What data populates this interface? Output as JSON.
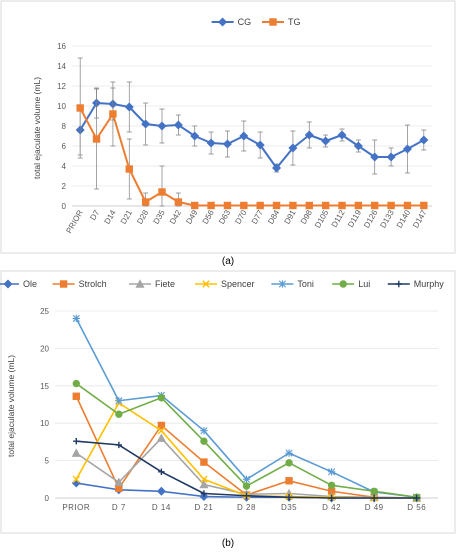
{
  "chart_data": [
    {
      "id": "a",
      "type": "line",
      "caption": "(a)",
      "ylabel": "total ejaculate volume (mL)",
      "xlabel": "",
      "categories": [
        "PRIOR",
        "D7",
        "D14",
        "D21",
        "D28",
        "D35",
        "D42",
        "D49",
        "D56",
        "D63",
        "D70",
        "D77",
        "D84",
        "D91",
        "D98",
        "D105",
        "D112",
        "D119",
        "D126",
        "D133",
        "D140",
        "D147"
      ],
      "ylim": [
        0,
        16
      ],
      "yticks": [
        0,
        2,
        4,
        6,
        8,
        10,
        12,
        14,
        16
      ],
      "grid": true,
      "legend_position": "top-center",
      "series": [
        {
          "name": "CG",
          "color": "#4472C4",
          "marker": "diamond",
          "values": [
            7.6,
            10.3,
            10.2,
            9.9,
            8.2,
            8.0,
            8.1,
            7.0,
            6.3,
            6.2,
            7.0,
            6.1,
            3.8,
            5.8,
            7.1,
            6.5,
            7.1,
            6.0,
            4.9,
            4.9,
            5.7,
            6.6
          ],
          "error": [
            2.5,
            1.5,
            1.6,
            2.5,
            2.1,
            1.7,
            1.0,
            1.0,
            1.1,
            1.3,
            1.5,
            1.3,
            0.4,
            1.7,
            1.3,
            0.6,
            0.6,
            0.6,
            1.7,
            0.9,
            2.4,
            1.0
          ]
        },
        {
          "name": "TG",
          "color": "#ED7D31",
          "marker": "square",
          "values": [
            9.8,
            6.7,
            9.2,
            3.7,
            0.4,
            1.4,
            0.4,
            0.05,
            0.05,
            0.05,
            0.05,
            0.05,
            0.05,
            0.05,
            0.05,
            0.05,
            0.05,
            0.05,
            0.05,
            0.05,
            0.05,
            0.05
          ],
          "error": [
            5.0,
            5.0,
            3.2,
            3.0,
            0.9,
            2.6,
            0.9,
            0.3,
            0.1,
            0.1,
            0.1,
            0.1,
            0.1,
            0.1,
            0.1,
            0.1,
            0.1,
            0.1,
            0.1,
            0.1,
            0.1,
            0.1
          ]
        }
      ]
    },
    {
      "id": "b",
      "type": "line",
      "caption": "(b)",
      "ylabel": "total ejaculate volume (mL)",
      "xlabel": "",
      "categories": [
        "PRIOR",
        "D 7",
        "D 14",
        "D 21",
        "D 28",
        "D35",
        "D 42",
        "D 49",
        "D 56"
      ],
      "ylim": [
        0,
        25
      ],
      "yticks": [
        0,
        5,
        10,
        15,
        20,
        25
      ],
      "grid": true,
      "legend_position": "top",
      "series": [
        {
          "name": "Ole",
          "color": "#4472C4",
          "marker": "diamond",
          "values": [
            2.0,
            1.1,
            0.9,
            0.2,
            0.1,
            0.1,
            0.0,
            0.0,
            0.0
          ]
        },
        {
          "name": "Strolch",
          "color": "#ED7D31",
          "marker": "square",
          "values": [
            13.6,
            1.3,
            9.7,
            4.8,
            0.4,
            2.3,
            0.9,
            0.1,
            0.0
          ]
        },
        {
          "name": "Fiete",
          "color": "#A5A5A5",
          "marker": "triangle",
          "values": [
            6.0,
            2.1,
            8.0,
            1.8,
            0.5,
            0.6,
            0.2,
            0.1,
            0.0
          ]
        },
        {
          "name": "Spencer",
          "color": "#FFC000",
          "marker": "x",
          "values": [
            2.5,
            12.7,
            9.0,
            2.5,
            0.3,
            0.2,
            0.1,
            0.0,
            0.0
          ]
        },
        {
          "name": "Toni",
          "color": "#5B9BD5",
          "marker": "star",
          "values": [
            24.0,
            13.0,
            13.7,
            9.0,
            2.5,
            6.0,
            3.5,
            0.8,
            0.1
          ]
        },
        {
          "name": "Lui",
          "color": "#70AD47",
          "marker": "circle",
          "values": [
            15.3,
            11.2,
            13.4,
            7.6,
            1.6,
            4.7,
            1.7,
            0.9,
            0.1
          ]
        },
        {
          "name": "Murphy",
          "color": "#203864",
          "marker": "plus",
          "values": [
            7.6,
            7.1,
            3.5,
            0.6,
            0.3,
            0.1,
            0.0,
            0.0,
            0.0
          ]
        }
      ]
    }
  ]
}
